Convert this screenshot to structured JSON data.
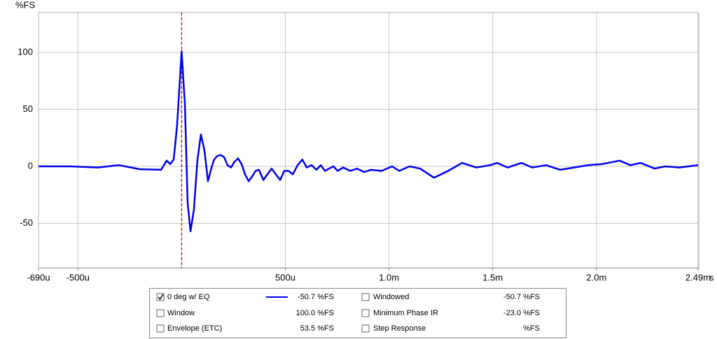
{
  "chart_data": {
    "type": "line",
    "y_label": "%FS",
    "x_label": "s",
    "xlim": [
      -0.00069,
      0.00249
    ],
    "ylim": [
      -89,
      135
    ],
    "xticks": [
      {
        "value": -0.00069,
        "label": "-690u"
      },
      {
        "value": -0.0005,
        "label": "-500u"
      },
      {
        "value": 0.0005,
        "label": "500u"
      },
      {
        "value": 0.001,
        "label": "1.0m"
      },
      {
        "value": 0.0015,
        "label": "1.5m"
      },
      {
        "value": 0.002,
        "label": "2.0m"
      },
      {
        "value": 0.00249,
        "label": "2.49m"
      }
    ],
    "x_grid": [
      -0.0005,
      0,
      0.0005,
      0.001,
      0.0015,
      0.002
    ],
    "yticks": [
      100,
      50,
      0,
      -50
    ],
    "grid": true,
    "marker_x": 0,
    "marker_color": "#dd0000",
    "series": [
      {
        "name": "0 deg w/ EQ",
        "color": "#0000ee",
        "readout": "-50.7 %FS",
        "checked": true,
        "x": [
          -0.00069,
          -0.000538,
          -0.000403,
          -0.000302,
          -0.000201,
          -9.9e-05,
          -7.2e-05,
          -5.5e-05,
          -3.8e-05,
          -2.2e-05,
          0,
          1.6e-05,
          2.9e-05,
          4.3e-05,
          5.9e-05,
          7.6e-05,
          9.3e-05,
          0.00011,
          0.000127,
          0.000144,
          0.000157,
          0.000171,
          0.000188,
          0.000205,
          0.000221,
          0.000238,
          0.000255,
          0.000272,
          0.000289,
          0.000306,
          0.000323,
          0.00034,
          0.000357,
          0.000373,
          0.000394,
          0.000414,
          0.000434,
          0.000454,
          0.000475,
          0.000495,
          0.000515,
          0.000536,
          0.000559,
          0.000582,
          0.000603,
          0.000627,
          0.00065,
          0.000671,
          0.000691,
          0.000711,
          0.000732,
          0.000752,
          0.000779,
          0.000813,
          0.000846,
          0.00088,
          0.000914,
          0.000964,
          0.001015,
          0.001049,
          0.001099,
          0.00115,
          0.001217,
          0.001285,
          0.001352,
          0.00142,
          0.001487,
          0.001521,
          0.001572,
          0.001639,
          0.00169,
          0.001757,
          0.001825,
          0.001892,
          0.00196,
          0.002028,
          0.002112,
          0.002163,
          0.002213,
          0.002281,
          0.002331,
          0.002399,
          0.00249
        ],
        "values": [
          0,
          0,
          -1,
          1,
          -2.5,
          -3,
          5,
          2,
          6,
          36,
          101,
          54,
          -32,
          -57,
          -38,
          5,
          28,
          14,
          -13,
          -1,
          6,
          9,
          10,
          8,
          1,
          -1,
          4,
          7,
          2,
          -7,
          -13,
          -9,
          -4,
          -3,
          -12,
          -7,
          -2,
          -7,
          -12,
          -4,
          -4,
          -7,
          1,
          6,
          -1,
          1,
          -3,
          1,
          -4,
          -2,
          0,
          -4,
          -1,
          -4,
          -2,
          -5,
          -3,
          -4,
          0,
          -4,
          0,
          -2,
          -10,
          -4,
          3,
          -1,
          1,
          3,
          -1,
          3,
          -1,
          1,
          -3,
          -1,
          1,
          2,
          5,
          1,
          3,
          -2,
          0,
          -1,
          1
        ]
      }
    ],
    "legend": [
      {
        "name": "Windowed",
        "readout": "-50.7 %FS",
        "checked": false,
        "enabled": true
      },
      {
        "name": "Window",
        "readout": "100.0 %FS",
        "checked": false,
        "enabled": true
      },
      {
        "name": "Minimum Phase IR",
        "readout": "-23.0 %FS",
        "checked": false,
        "enabled": false
      },
      {
        "name": "Envelope (ETC)",
        "readout": "53.5 %FS",
        "checked": false,
        "enabled": true
      },
      {
        "name": "Step Response",
        "readout": "%FS",
        "checked": false,
        "enabled": true
      }
    ]
  }
}
